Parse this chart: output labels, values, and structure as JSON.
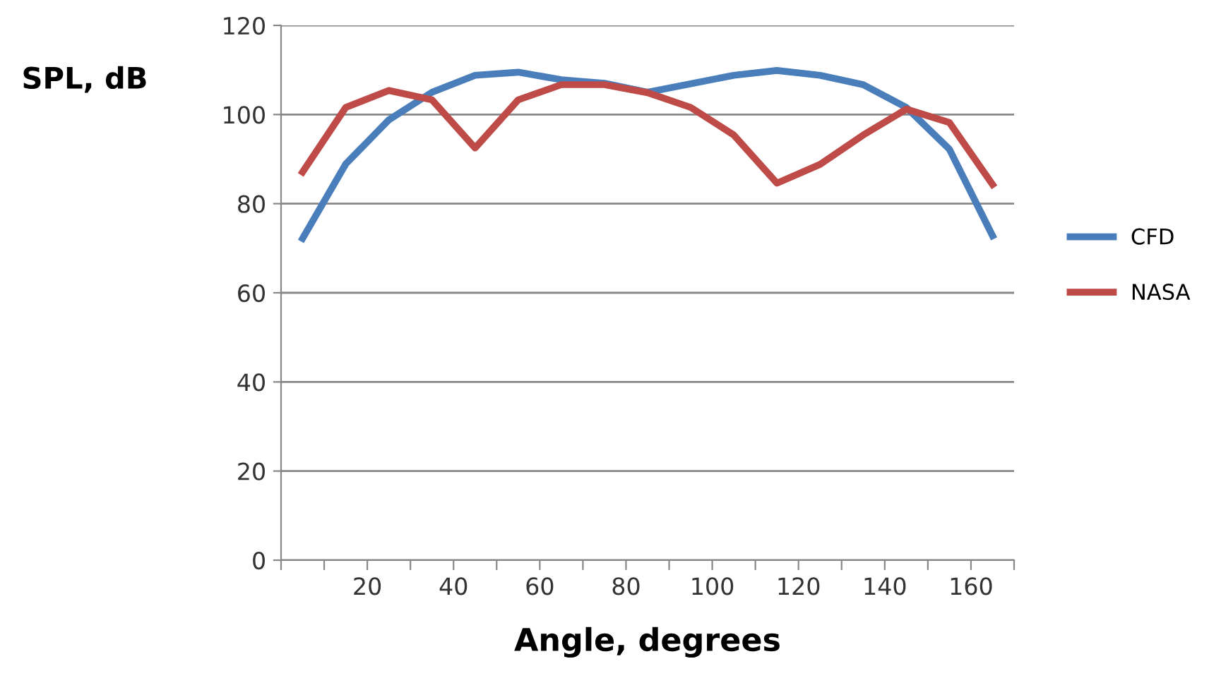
{
  "chart_data": {
    "type": "line",
    "xlabel": "Angle, degrees",
    "ylabel": "SPL, dB",
    "x": [
      5,
      15,
      25,
      35,
      45,
      55,
      65,
      75,
      85,
      95,
      105,
      115,
      125,
      135,
      145,
      155,
      165
    ],
    "series": [
      {
        "name": "CFD",
        "color": "#4a7ebb",
        "values": [
          72.2,
          88.9,
          98.8,
          105.0,
          108.8,
          109.5,
          107.8,
          107.0,
          105.0,
          106.9,
          108.8,
          109.9,
          108.8,
          106.7,
          101.6,
          92.2,
          72.8
        ]
      },
      {
        "name": "NASA",
        "color": "#be4b48",
        "values": [
          87.1,
          101.6,
          105.4,
          103.3,
          92.5,
          103.3,
          106.7,
          106.7,
          104.9,
          101.6,
          95.4,
          84.6,
          88.8,
          95.4,
          101.2,
          98.2,
          84.3
        ]
      }
    ],
    "xlim": [
      0,
      170
    ],
    "xticks": [
      {
        "value": 0,
        "label": null
      },
      {
        "value": 10,
        "label": null
      },
      20,
      {
        "value": 30,
        "label": null
      },
      40,
      {
        "value": 50,
        "label": null
      },
      60,
      {
        "value": 70,
        "label": null
      },
      80,
      {
        "value": 90,
        "label": null
      },
      100,
      {
        "value": 110,
        "label": null
      },
      120,
      {
        "value": 130,
        "label": null
      },
      140,
      {
        "value": 150,
        "label": null
      },
      160,
      {
        "value": 170,
        "label": null
      }
    ],
    "ylim": [
      0,
      120
    ],
    "yticks": [
      0,
      20,
      40,
      60,
      80,
      100,
      120
    ],
    "grid": "y",
    "legend": "right",
    "marker": "none",
    "line_style": "solid"
  }
}
